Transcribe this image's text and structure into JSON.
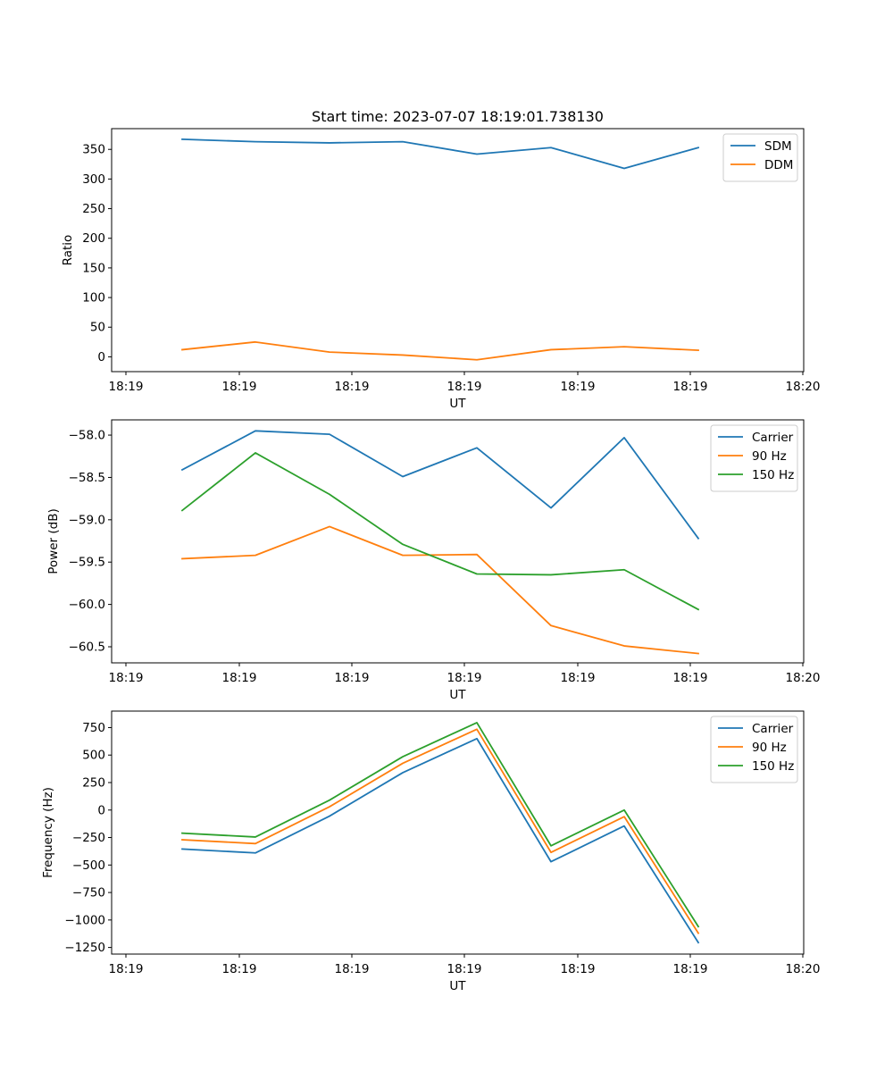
{
  "chart_data": [
    {
      "type": "line",
      "title": "Start time: 2023-07-07 18:19:01.738130",
      "xlabel": "UT",
      "ylabel": "Ratio",
      "xticks": [
        "18:19",
        "18:19",
        "18:19",
        "18:19",
        "18:19",
        "18:19",
        "18:20"
      ],
      "x": [
        1,
        2,
        3,
        4,
        5,
        6,
        7,
        8
      ],
      "xlim": [
        0.2,
        9.3
      ],
      "ylim": [
        -25,
        385
      ],
      "yticks": [
        0,
        50,
        100,
        150,
        200,
        250,
        300,
        350
      ],
      "ytick_labels": [
        "0",
        "50",
        "100",
        "150",
        "200",
        "250",
        "300",
        "350"
      ],
      "legend_position": "top-right",
      "series": [
        {
          "name": "SDM",
          "color": "#1f77b4",
          "values": [
            367,
            363,
            361,
            363,
            342,
            353,
            318,
            353
          ]
        },
        {
          "name": "DDM",
          "color": "#ff7f0e",
          "values": [
            12,
            25,
            8,
            3,
            -5,
            12,
            17,
            11
          ]
        }
      ]
    },
    {
      "type": "line",
      "title": "",
      "xlabel": "UT",
      "ylabel": "Power (dB)",
      "xticks": [
        "18:19",
        "18:19",
        "18:19",
        "18:19",
        "18:19",
        "18:19",
        "18:20"
      ],
      "x": [
        1,
        2,
        3,
        4,
        5,
        6,
        7,
        8
      ],
      "xlim": [
        0.2,
        9.3
      ],
      "ylim": [
        -60.69,
        -57.82
      ],
      "yticks": [
        -58.0,
        -58.5,
        -59.0,
        -59.5,
        -60.0,
        -60.5
      ],
      "ytick_labels": [
        "−58.0",
        "−58.5",
        "−59.0",
        "−59.5",
        "−60.0",
        "−60.5"
      ],
      "legend_position": "top-right",
      "series": [
        {
          "name": "Carrier",
          "color": "#1f77b4",
          "values": [
            -58.41,
            -57.95,
            -57.99,
            -58.49,
            -58.15,
            -58.86,
            -58.03,
            -59.22
          ]
        },
        {
          "name": "90 Hz",
          "color": "#ff7f0e",
          "values": [
            -59.46,
            -59.42,
            -59.08,
            -59.42,
            -59.41,
            -60.25,
            -60.49,
            -60.58
          ]
        },
        {
          "name": "150 Hz",
          "color": "#2ca02c",
          "values": [
            -58.89,
            -58.21,
            -58.7,
            -59.29,
            -59.64,
            -59.65,
            -59.59,
            -60.06
          ]
        }
      ]
    },
    {
      "type": "line",
      "title": "",
      "xlabel": "UT",
      "ylabel": "Frequency (Hz)",
      "xticks": [
        "18:19",
        "18:19",
        "18:19",
        "18:19",
        "18:19",
        "18:19",
        "18:20"
      ],
      "x": [
        1,
        2,
        3,
        4,
        5,
        6,
        7,
        8
      ],
      "xlim": [
        0.2,
        9.3
      ],
      "ylim": [
        -1310,
        900
      ],
      "yticks": [
        750,
        500,
        250,
        0,
        -250,
        -500,
        -750,
        -1000,
        -1250
      ],
      "ytick_labels": [
        "750",
        "500",
        "250",
        "0",
        "−250",
        "−500",
        "−750",
        "−1000",
        "−1250"
      ],
      "legend_position": "top-right",
      "series": [
        {
          "name": "Carrier",
          "color": "#1f77b4",
          "values": [
            -355,
            -390,
            -55,
            340,
            650,
            -470,
            -145,
            -1205
          ]
        },
        {
          "name": "90 Hz",
          "color": "#ff7f0e",
          "values": [
            -270,
            -305,
            30,
            425,
            735,
            -385,
            -60,
            -1120
          ]
        },
        {
          "name": "150 Hz",
          "color": "#2ca02c",
          "values": [
            -210,
            -245,
            90,
            485,
            795,
            -325,
            0,
            -1060
          ]
        }
      ]
    }
  ]
}
